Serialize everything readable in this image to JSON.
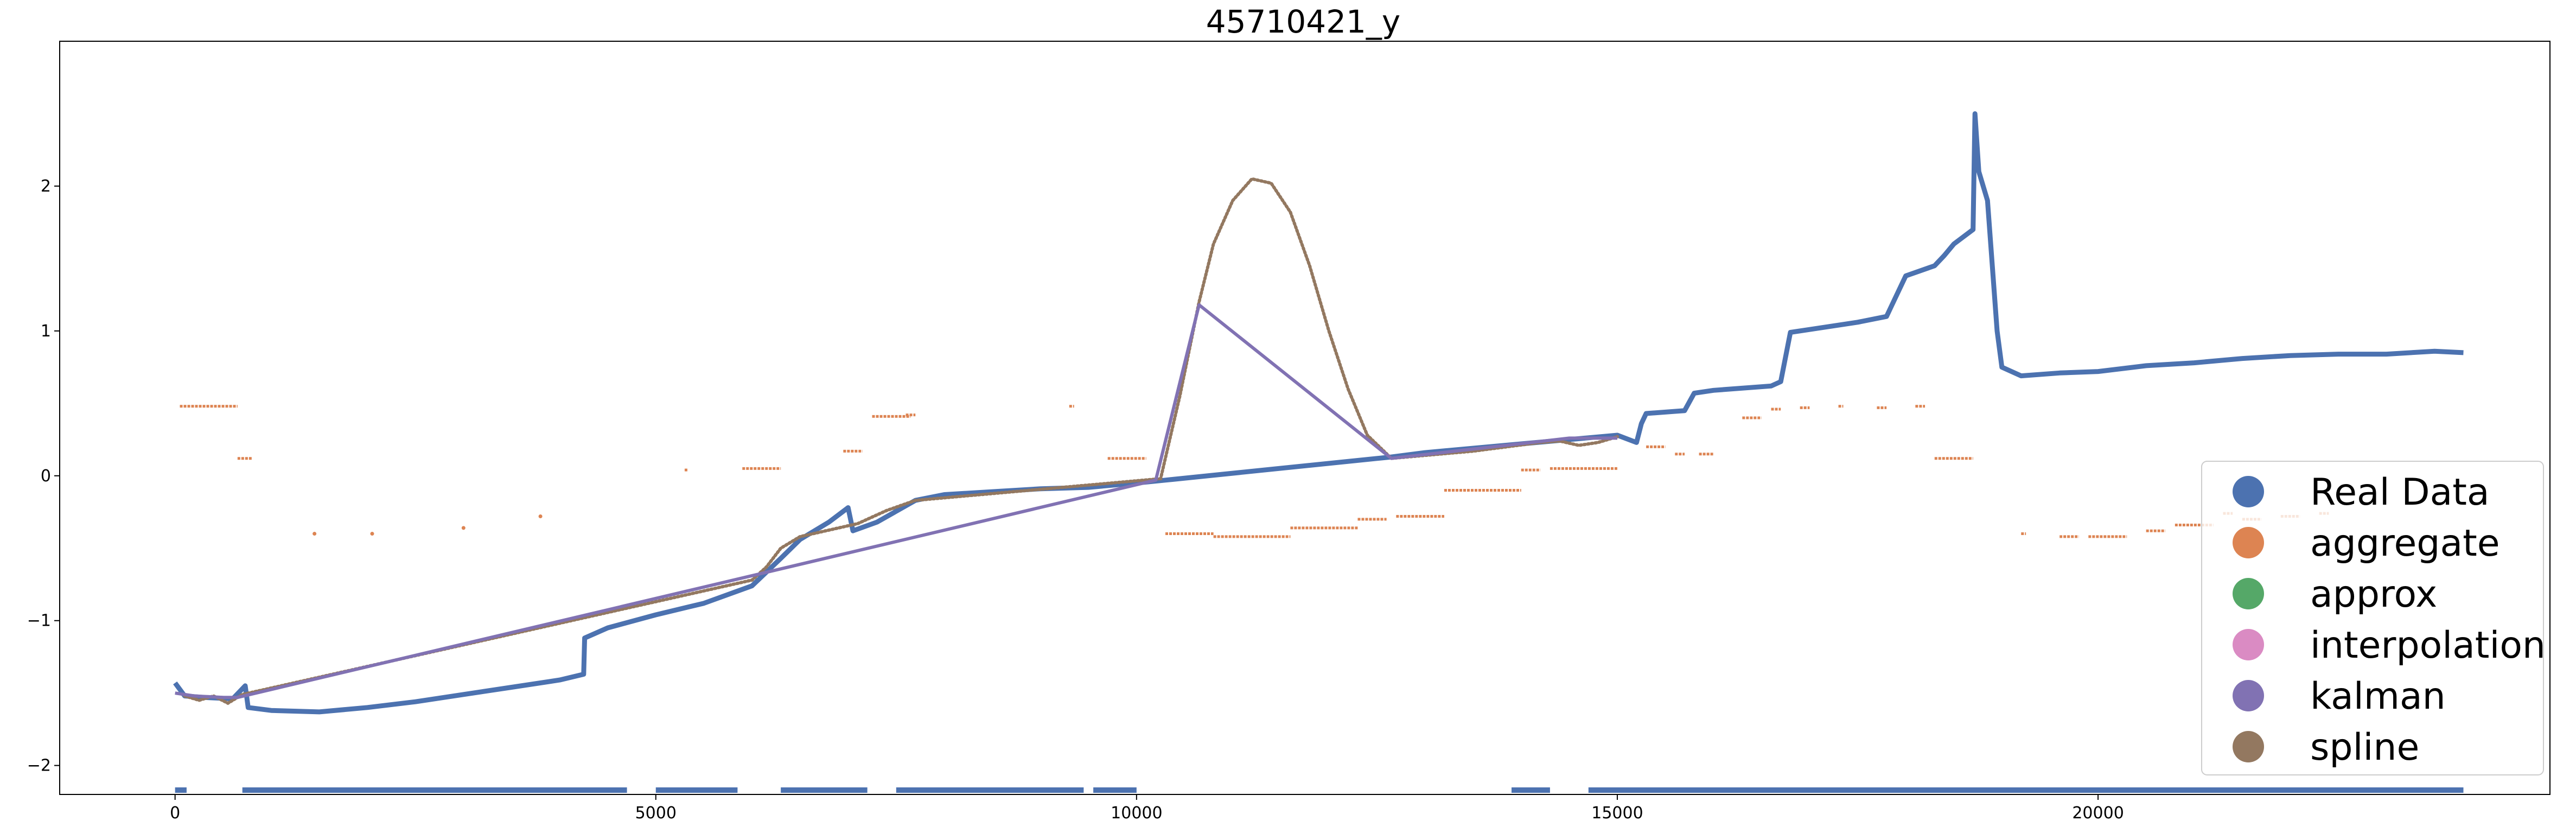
{
  "chart_data": {
    "type": "scatter",
    "title": "45710421_y",
    "xlabel": "",
    "ylabel": "",
    "xlim": [
      -1200,
      24700
    ],
    "ylim": [
      -2.2,
      3.0
    ],
    "xticks": [
      0,
      5000,
      10000,
      15000,
      20000
    ],
    "xtick_labels": [
      "0",
      "5000",
      "10000",
      "15000",
      "20000"
    ],
    "yticks": [
      -2,
      -1,
      0,
      1,
      2
    ],
    "ytick_labels": [
      "−2",
      "−1",
      "0",
      "1",
      "2"
    ],
    "grid": false,
    "legend_position": "lower-right",
    "colors": {
      "Real Data": "#4c72b0",
      "aggregate": "#dd8452",
      "approx": "#55a868",
      "interpolation": "#da8bc3",
      "kalman": "#8172b3",
      "spline": "#937860"
    },
    "series": [
      {
        "name": "Real Data",
        "kind": "line-dense",
        "points": [
          [
            0,
            -1.43
          ],
          [
            100,
            -1.52
          ],
          [
            300,
            -1.53
          ],
          [
            600,
            -1.54
          ],
          [
            730,
            -1.45
          ],
          [
            760,
            -1.6
          ],
          [
            1000,
            -1.62
          ],
          [
            1500,
            -1.63
          ],
          [
            2000,
            -1.6
          ],
          [
            2500,
            -1.56
          ],
          [
            3000,
            -1.51
          ],
          [
            3500,
            -1.46
          ],
          [
            4000,
            -1.41
          ],
          [
            4250,
            -1.37
          ],
          [
            4260,
            -1.12
          ],
          [
            4500,
            -1.05
          ],
          [
            5000,
            -0.96
          ],
          [
            5500,
            -0.88
          ],
          [
            6000,
            -0.76
          ],
          [
            6300,
            -0.57
          ],
          [
            6500,
            -0.44
          ],
          [
            6800,
            -0.32
          ],
          [
            7000,
            -0.22
          ],
          [
            7050,
            -0.38
          ],
          [
            7300,
            -0.32
          ],
          [
            7700,
            -0.17
          ],
          [
            8000,
            -0.13
          ],
          [
            8500,
            -0.11
          ],
          [
            9000,
            -0.09
          ],
          [
            9500,
            -0.08
          ],
          [
            10000,
            -0.05
          ],
          [
            10300,
            -0.03
          ],
          [
            12650,
            0.13
          ],
          [
            13000,
            0.16
          ],
          [
            14000,
            0.22
          ],
          [
            15000,
            0.28
          ],
          [
            15200,
            0.23
          ],
          [
            15250,
            0.36
          ],
          [
            15300,
            0.43
          ],
          [
            15700,
            0.45
          ],
          [
            15800,
            0.57
          ],
          [
            16000,
            0.59
          ],
          [
            16600,
            0.62
          ],
          [
            16700,
            0.65
          ],
          [
            16800,
            0.99
          ],
          [
            17000,
            1.01
          ],
          [
            17500,
            1.06
          ],
          [
            17800,
            1.1
          ],
          [
            17850,
            1.17
          ],
          [
            18000,
            1.38
          ],
          [
            18300,
            1.45
          ],
          [
            18400,
            1.52
          ],
          [
            18500,
            1.6
          ],
          [
            18600,
            1.65
          ],
          [
            18700,
            1.7
          ],
          [
            18720,
            2.5
          ],
          [
            18760,
            2.1
          ],
          [
            18850,
            1.9
          ],
          [
            18950,
            1.0
          ],
          [
            19000,
            0.75
          ],
          [
            19200,
            0.69
          ],
          [
            19600,
            0.71
          ],
          [
            20000,
            0.72
          ],
          [
            20500,
            0.76
          ],
          [
            21000,
            0.78
          ],
          [
            21500,
            0.81
          ],
          [
            22000,
            0.83
          ],
          [
            22500,
            0.84
          ],
          [
            23000,
            0.84
          ],
          [
            23500,
            0.86
          ],
          [
            23800,
            0.85
          ]
        ]
      },
      {
        "name": "Real Data (bottom band)",
        "kind": "segments",
        "y": -2.17,
        "segments": [
          [
            0,
            120
          ],
          [
            700,
            4700
          ],
          [
            5000,
            5850
          ],
          [
            6300,
            7200
          ],
          [
            7500,
            9450
          ],
          [
            9550,
            10000
          ],
          [
            13900,
            14300
          ],
          [
            14700,
            23800
          ]
        ]
      },
      {
        "name": "aggregate",
        "kind": "segments-multi",
        "segments": [
          [
            50,
            650,
            0.48
          ],
          [
            650,
            800,
            0.12
          ],
          [
            5300,
            5330,
            0.04
          ],
          [
            5900,
            6300,
            0.05
          ],
          [
            6950,
            7150,
            0.17
          ],
          [
            7250,
            7650,
            0.41
          ],
          [
            7600,
            7700,
            0.42
          ],
          [
            9300,
            9350,
            0.48
          ],
          [
            9700,
            10100,
            0.12
          ],
          [
            10300,
            10800,
            -0.4
          ],
          [
            10800,
            11600,
            -0.42
          ],
          [
            11600,
            12300,
            -0.36
          ],
          [
            12300,
            12600,
            -0.3
          ],
          [
            12700,
            13200,
            -0.28
          ],
          [
            13200,
            14000,
            -0.1
          ],
          [
            14000,
            14200,
            0.04
          ],
          [
            14300,
            15000,
            0.05
          ],
          [
            15300,
            15500,
            0.2
          ],
          [
            15600,
            15700,
            0.15
          ],
          [
            15850,
            16000,
            0.15
          ],
          [
            16300,
            16500,
            0.4
          ],
          [
            16600,
            16700,
            0.46
          ],
          [
            16900,
            17000,
            0.47
          ],
          [
            17300,
            17350,
            0.48
          ],
          [
            17700,
            17800,
            0.47
          ],
          [
            18100,
            18200,
            0.48
          ],
          [
            18300,
            18700,
            0.12
          ],
          [
            19200,
            19250,
            -0.4
          ],
          [
            19600,
            19800,
            -0.42
          ],
          [
            19900,
            20300,
            -0.42
          ],
          [
            20500,
            20700,
            -0.38
          ],
          [
            20800,
            21200,
            -0.34
          ],
          [
            21300,
            21400,
            -0.26
          ],
          [
            21500,
            21700,
            -0.3
          ],
          [
            21900,
            22100,
            -0.28
          ],
          [
            22300,
            22400,
            -0.26
          ]
        ],
        "isolated": [
          [
            1450,
            -0.4
          ],
          [
            2050,
            -0.4
          ],
          [
            3000,
            -0.36
          ],
          [
            3800,
            -0.28
          ]
        ]
      },
      {
        "name": "approx",
        "kind": "hidden-under-kalman",
        "points": []
      },
      {
        "name": "interpolation",
        "kind": "hidden-under-kalman",
        "points": []
      },
      {
        "name": "kalman",
        "kind": "line",
        "points": [
          [
            0,
            -1.5
          ],
          [
            200,
            -1.52
          ],
          [
            500,
            -1.53
          ],
          [
            650,
            -1.53
          ],
          [
            10200,
            -0.03
          ],
          [
            10650,
            1.18
          ],
          [
            12650,
            0.12
          ],
          [
            14500,
            0.26
          ],
          [
            15000,
            0.26
          ]
        ]
      },
      {
        "name": "spline",
        "kind": "curve",
        "points": [
          [
            100,
            -1.52
          ],
          [
            250,
            -1.55
          ],
          [
            400,
            -1.52
          ],
          [
            550,
            -1.57
          ],
          [
            700,
            -1.51
          ],
          [
            6000,
            -0.72
          ],
          [
            6150,
            -0.63
          ],
          [
            6300,
            -0.5
          ],
          [
            6500,
            -0.42
          ],
          [
            7100,
            -0.33
          ],
          [
            7400,
            -0.24
          ],
          [
            7700,
            -0.17
          ],
          [
            10250,
            -0.02
          ],
          [
            10450,
            0.55
          ],
          [
            10650,
            1.2
          ],
          [
            10800,
            1.6
          ],
          [
            11000,
            1.9
          ],
          [
            11200,
            2.05
          ],
          [
            11400,
            2.02
          ],
          [
            11600,
            1.82
          ],
          [
            11800,
            1.45
          ],
          [
            12000,
            1.0
          ],
          [
            12200,
            0.6
          ],
          [
            12400,
            0.28
          ],
          [
            12650,
            0.12
          ],
          [
            13500,
            0.17
          ],
          [
            14200,
            0.23
          ],
          [
            14400,
            0.24
          ],
          [
            14600,
            0.21
          ],
          [
            14800,
            0.23
          ],
          [
            15000,
            0.27
          ]
        ]
      }
    ]
  }
}
